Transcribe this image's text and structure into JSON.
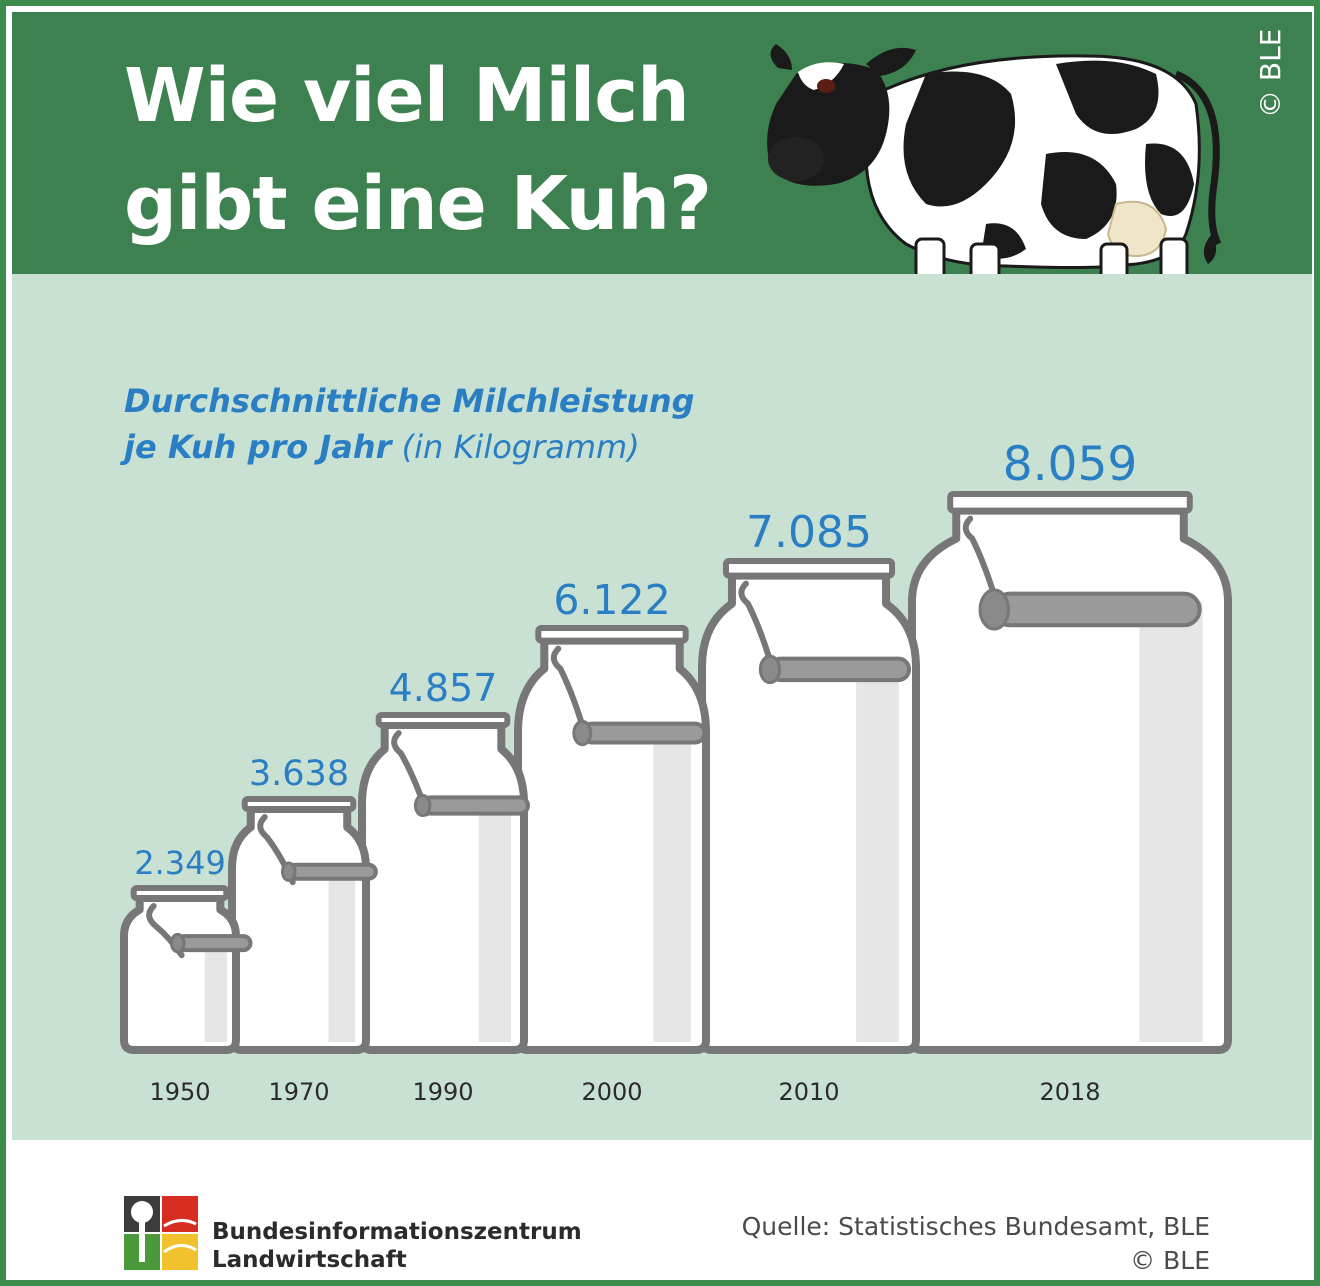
{
  "header": {
    "title_line1": "Wie viel Milch",
    "title_line2": "gibt eine Kuh?",
    "copyright": "© BLE"
  },
  "subtitle": {
    "line1": "Durchschnittliche Milchleistung",
    "line2_bold": "je Kuh pro Jahr",
    "line2_rest": "(in Kilogramm)"
  },
  "footer": {
    "org_line1": "Bundesinformationszentrum",
    "org_line2": "Landwirtschaft",
    "source": "Quelle: Statistisches Bundesamt, BLE",
    "copyright": "© BLE"
  },
  "colors": {
    "header_bg": "#3d8150",
    "chart_bg": "#c9e1d3",
    "value_label": "#2a7fc4",
    "can_outline": "#777777",
    "can_fill": "#ffffff"
  },
  "chart_data": {
    "type": "bar",
    "categories": [
      "1950",
      "1970",
      "1990",
      "2000",
      "2010",
      "2018"
    ],
    "values": [
      2349,
      3638,
      4857,
      6122,
      7085,
      8059
    ],
    "value_labels": [
      "2.349",
      "3.638",
      "4.857",
      "6.122",
      "7.085",
      "8.059"
    ],
    "title": "Durchschnittliche Milchleistung je Kuh pro Jahr (in Kilogramm)",
    "xlabel": "",
    "ylabel": "",
    "bar_shape": "milk-can",
    "grid": false,
    "legend": "none"
  }
}
